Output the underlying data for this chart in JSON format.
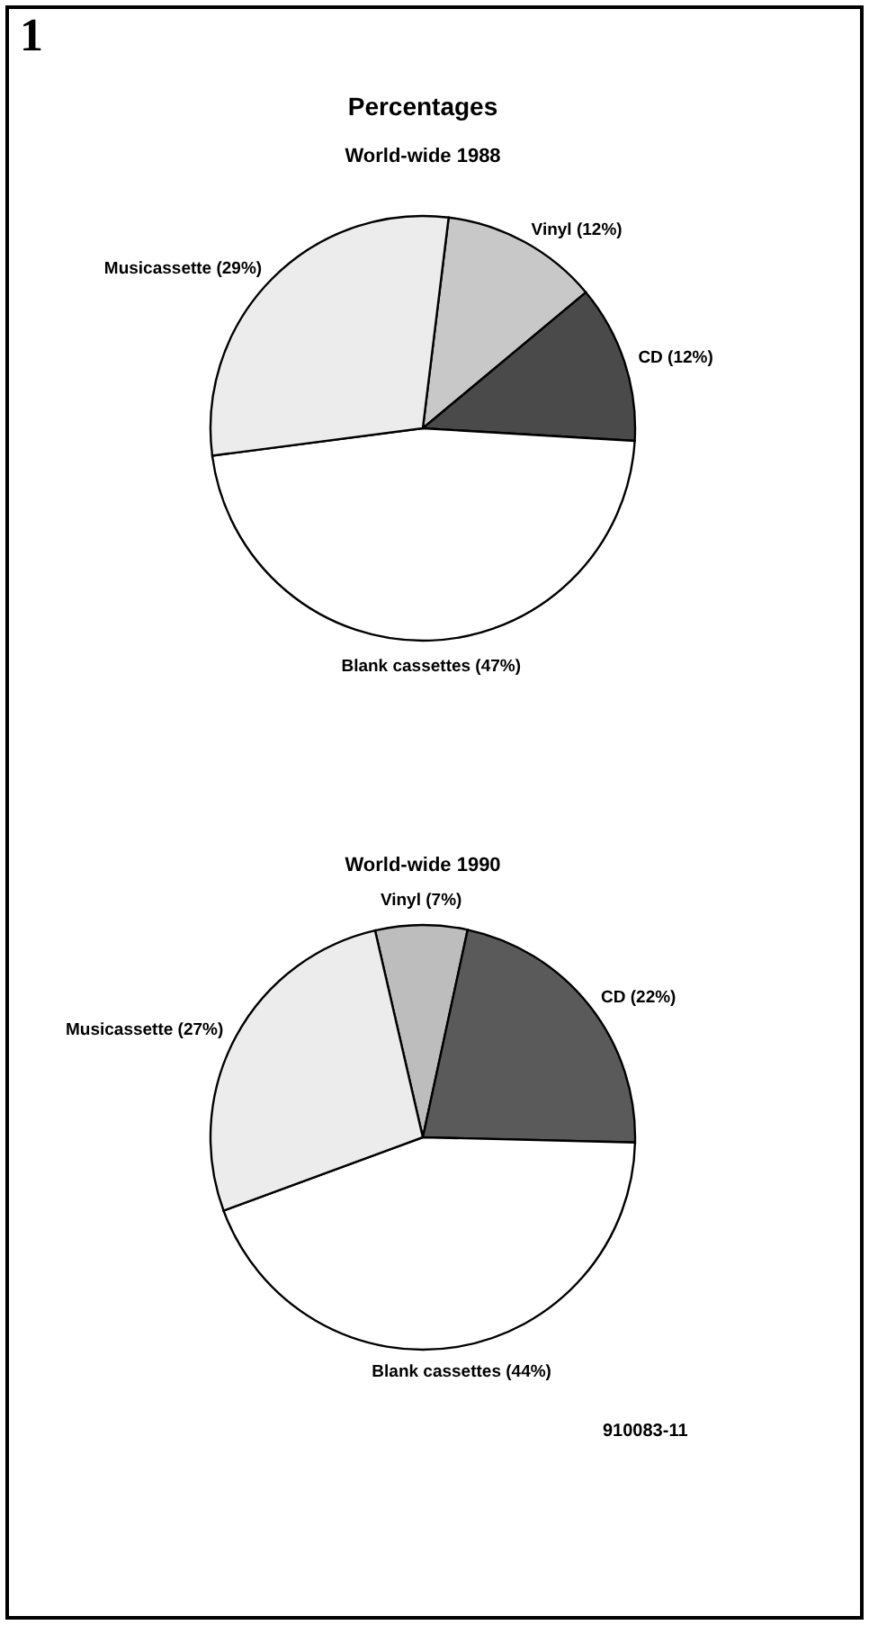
{
  "chart_data": [
    {
      "type": "pie",
      "title": "Percentages",
      "subtitle": "World-wide 1988",
      "categories": [
        "Vinyl (12%)",
        "CD (12%)",
        "Blank cassettes (47%)",
        "Musicassette (29%)"
      ],
      "values": [
        12,
        12,
        47,
        29
      ],
      "colors": [
        "#c8c8c8",
        "#4a4a4a",
        "#ffffff",
        "#ececec"
      ],
      "annotations": [
        "1"
      ]
    },
    {
      "type": "pie",
      "title": "World-wide 1990",
      "categories": [
        "Vinyl (7%)",
        "CD (22%)",
        "Blank cassettes (44%)",
        "Musicassette (27%)"
      ],
      "values": [
        7,
        22,
        44,
        27
      ],
      "colors": [
        "#bdbdbd",
        "#5a5a5a",
        "#ffffff",
        "#ececec"
      ],
      "annotations": [
        "910083-11"
      ]
    }
  ]
}
